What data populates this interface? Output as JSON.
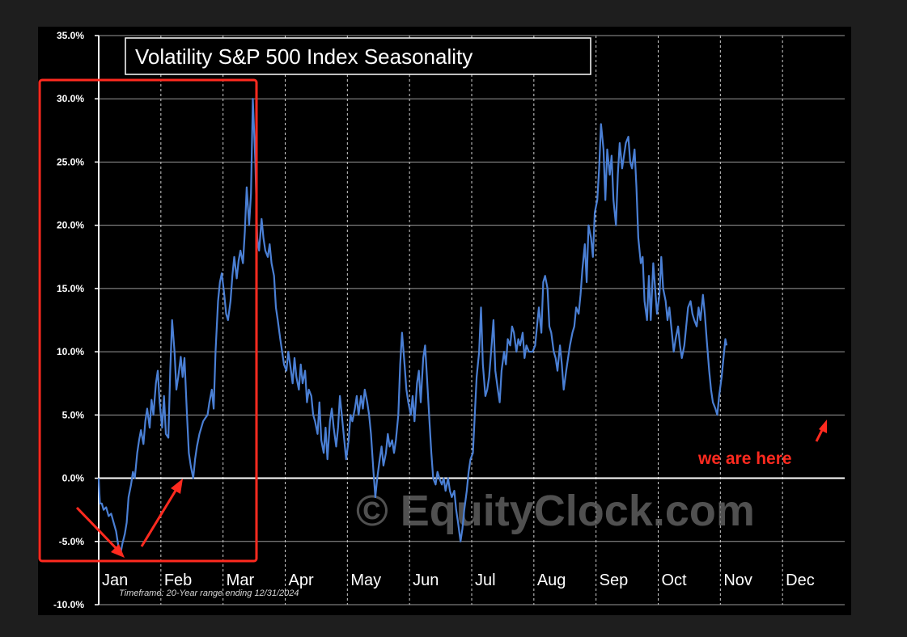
{
  "chart_data": {
    "type": "line",
    "title": "Volatility S&P 500 Index Seasonality",
    "footnote": "Timeframe: 20-Year range ending 12/31/2024",
    "watermark": "© EquityClock.com",
    "annotation": "we are here",
    "ylim": [
      -10,
      35
    ],
    "ytick_labels": [
      "-10.0%",
      "-5.0%",
      "0.0%",
      "5.0%",
      "10.0%",
      "15.0%",
      "20.0%",
      "25.0%",
      "30.0%",
      "35.0%"
    ],
    "ytick_values": [
      -10,
      -5,
      0,
      5,
      10,
      15,
      20,
      25,
      30,
      35
    ],
    "month_labels": [
      "Jan",
      "Feb",
      "Mar",
      "Apr",
      "May",
      "Jun",
      "Jul",
      "Aug",
      "Sep",
      "Oct",
      "Nov",
      "Dec"
    ],
    "xlim": [
      0,
      12
    ],
    "grid": true,
    "line_color": "#4a7fd4",
    "highlight_color": "#ff2a1f",
    "series": [
      {
        "points": [
          [
            0.0,
            0.0
          ],
          [
            0.02,
            -2.0
          ],
          [
            0.05,
            -2.0
          ],
          [
            0.08,
            -2.5
          ],
          [
            0.12,
            -2.3
          ],
          [
            0.16,
            -3.0
          ],
          [
            0.2,
            -2.8
          ],
          [
            0.24,
            -3.5
          ],
          [
            0.28,
            -4.2
          ],
          [
            0.32,
            -5.5
          ],
          [
            0.35,
            -6.0
          ],
          [
            0.38,
            -5.2
          ],
          [
            0.42,
            -4.4
          ],
          [
            0.45,
            -3.5
          ],
          [
            0.48,
            -1.5
          ],
          [
            0.52,
            -0.5
          ],
          [
            0.55,
            0.5
          ],
          [
            0.58,
            0.0
          ],
          [
            0.62,
            2.0
          ],
          [
            0.65,
            3.0
          ],
          [
            0.68,
            3.8
          ],
          [
            0.72,
            2.7
          ],
          [
            0.75,
            4.5
          ],
          [
            0.78,
            5.5
          ],
          [
            0.82,
            4.0
          ],
          [
            0.85,
            6.2
          ],
          [
            0.88,
            5.0
          ],
          [
            0.92,
            7.5
          ],
          [
            0.95,
            8.5
          ],
          [
            0.98,
            6.0
          ],
          [
            1.02,
            4.0
          ],
          [
            1.05,
            6.5
          ],
          [
            1.08,
            3.5
          ],
          [
            1.12,
            3.2
          ],
          [
            1.15,
            8.5
          ],
          [
            1.18,
            12.5
          ],
          [
            1.22,
            10.0
          ],
          [
            1.25,
            7.0
          ],
          [
            1.28,
            8.0
          ],
          [
            1.32,
            9.6
          ],
          [
            1.35,
            8.0
          ],
          [
            1.38,
            9.5
          ],
          [
            1.42,
            5.0
          ],
          [
            1.45,
            2.0
          ],
          [
            1.48,
            1.0
          ],
          [
            1.52,
            0.0
          ],
          [
            1.55,
            1.5
          ],
          [
            1.58,
            2.5
          ],
          [
            1.62,
            3.5
          ],
          [
            1.65,
            4.0
          ],
          [
            1.68,
            4.5
          ],
          [
            1.72,
            4.8
          ],
          [
            1.75,
            5.0
          ],
          [
            1.78,
            6.0
          ],
          [
            1.82,
            7.0
          ],
          [
            1.85,
            5.5
          ],
          [
            1.88,
            10.0
          ],
          [
            1.92,
            14.0
          ],
          [
            1.95,
            15.5
          ],
          [
            1.98,
            16.2
          ],
          [
            2.02,
            14.5
          ],
          [
            2.05,
            13.0
          ],
          [
            2.08,
            12.5
          ],
          [
            2.12,
            14.0
          ],
          [
            2.15,
            16.0
          ],
          [
            2.18,
            17.5
          ],
          [
            2.22,
            15.8
          ],
          [
            2.25,
            17.2
          ],
          [
            2.28,
            18.0
          ],
          [
            2.32,
            17.0
          ],
          [
            2.35,
            19.5
          ],
          [
            2.38,
            23.0
          ],
          [
            2.42,
            20.0
          ],
          [
            2.45,
            22.5
          ],
          [
            2.48,
            30.0
          ],
          [
            2.52,
            25.0
          ],
          [
            2.55,
            19.0
          ],
          [
            2.58,
            18.0
          ],
          [
            2.62,
            20.5
          ],
          [
            2.65,
            19.0
          ],
          [
            2.68,
            18.0
          ],
          [
            2.72,
            17.5
          ],
          [
            2.75,
            18.5
          ],
          [
            2.78,
            17.0
          ],
          [
            2.82,
            16.0
          ],
          [
            2.85,
            13.5
          ],
          [
            2.88,
            12.5
          ],
          [
            2.92,
            11.0
          ],
          [
            2.95,
            10.0
          ],
          [
            2.98,
            9.0
          ],
          [
            3.02,
            8.5
          ],
          [
            3.05,
            10.0
          ],
          [
            3.08,
            9.0
          ],
          [
            3.12,
            7.5
          ],
          [
            3.15,
            9.5
          ],
          [
            3.18,
            8.0
          ],
          [
            3.22,
            7.0
          ],
          [
            3.25,
            9.0
          ],
          [
            3.28,
            7.5
          ],
          [
            3.32,
            8.5
          ],
          [
            3.35,
            6.0
          ],
          [
            3.38,
            7.0
          ],
          [
            3.42,
            6.5
          ],
          [
            3.45,
            5.0
          ],
          [
            3.48,
            4.5
          ],
          [
            3.52,
            3.5
          ],
          [
            3.55,
            6.0
          ],
          [
            3.58,
            3.0
          ],
          [
            3.62,
            2.0
          ],
          [
            3.65,
            4.0
          ],
          [
            3.68,
            1.5
          ],
          [
            3.72,
            4.5
          ],
          [
            3.75,
            5.5
          ],
          [
            3.78,
            4.0
          ],
          [
            3.82,
            2.5
          ],
          [
            3.85,
            4.0
          ],
          [
            3.88,
            6.5
          ],
          [
            3.92,
            4.5
          ],
          [
            3.95,
            3.0
          ],
          [
            3.98,
            1.5
          ],
          [
            4.02,
            3.0
          ],
          [
            4.05,
            5.0
          ],
          [
            4.08,
            4.5
          ],
          [
            4.12,
            5.5
          ],
          [
            4.15,
            6.5
          ],
          [
            4.18,
            5.0
          ],
          [
            4.22,
            6.5
          ],
          [
            4.25,
            5.5
          ],
          [
            4.28,
            7.0
          ],
          [
            4.32,
            6.0
          ],
          [
            4.35,
            5.0
          ],
          [
            4.38,
            3.5
          ],
          [
            4.42,
            0.5
          ],
          [
            4.45,
            -1.5
          ],
          [
            4.48,
            0.0
          ],
          [
            4.52,
            1.5
          ],
          [
            4.55,
            2.5
          ],
          [
            4.58,
            1.0
          ],
          [
            4.62,
            2.0
          ],
          [
            4.65,
            3.5
          ],
          [
            4.68,
            2.5
          ],
          [
            4.72,
            3.0
          ],
          [
            4.75,
            2.0
          ],
          [
            4.78,
            3.0
          ],
          [
            4.82,
            5.0
          ],
          [
            4.85,
            9.0
          ],
          [
            4.88,
            11.5
          ],
          [
            4.92,
            9.0
          ],
          [
            4.95,
            7.0
          ],
          [
            4.98,
            6.0
          ],
          [
            5.02,
            5.0
          ],
          [
            5.05,
            6.5
          ],
          [
            5.08,
            4.5
          ],
          [
            5.12,
            7.5
          ],
          [
            5.15,
            8.5
          ],
          [
            5.18,
            6.0
          ],
          [
            5.22,
            9.5
          ],
          [
            5.25,
            10.5
          ],
          [
            5.28,
            8.0
          ],
          [
            5.32,
            4.5
          ],
          [
            5.35,
            2.0
          ],
          [
            5.38,
            0.0
          ],
          [
            5.42,
            -0.5
          ],
          [
            5.45,
            0.5
          ],
          [
            5.48,
            0.0
          ],
          [
            5.52,
            -0.5
          ],
          [
            5.55,
            0.0
          ],
          [
            5.58,
            -1.0
          ],
          [
            5.62,
            0.0
          ],
          [
            5.65,
            -1.0
          ],
          [
            5.68,
            -1.5
          ],
          [
            5.72,
            -1.0
          ],
          [
            5.75,
            -2.5
          ],
          [
            5.78,
            -3.5
          ],
          [
            5.82,
            -5.0
          ],
          [
            5.85,
            -4.0
          ],
          [
            5.88,
            -2.5
          ],
          [
            5.92,
            -1.0
          ],
          [
            5.95,
            0.5
          ],
          [
            5.98,
            1.5
          ],
          [
            6.02,
            2.0
          ],
          [
            6.05,
            5.0
          ],
          [
            6.08,
            8.0
          ],
          [
            6.12,
            10.0
          ],
          [
            6.15,
            13.5
          ],
          [
            6.18,
            9.0
          ],
          [
            6.22,
            6.5
          ],
          [
            6.25,
            7.0
          ],
          [
            6.28,
            8.0
          ],
          [
            6.32,
            10.5
          ],
          [
            6.35,
            12.5
          ],
          [
            6.38,
            8.5
          ],
          [
            6.42,
            7.0
          ],
          [
            6.45,
            6.0
          ],
          [
            6.48,
            8.5
          ],
          [
            6.52,
            10.0
          ],
          [
            6.55,
            9.0
          ],
          [
            6.58,
            11.0
          ],
          [
            6.62,
            10.5
          ],
          [
            6.65,
            12.0
          ],
          [
            6.68,
            11.5
          ],
          [
            6.72,
            10.0
          ],
          [
            6.75,
            11.0
          ],
          [
            6.78,
            10.5
          ],
          [
            6.82,
            11.5
          ],
          [
            6.85,
            9.5
          ],
          [
            6.88,
            10.5
          ],
          [
            6.92,
            10.0
          ],
          [
            6.95,
            10.0
          ],
          [
            6.98,
            10.0
          ],
          [
            7.02,
            10.5
          ],
          [
            7.05,
            12.0
          ],
          [
            7.08,
            13.5
          ],
          [
            7.12,
            11.5
          ],
          [
            7.15,
            15.5
          ],
          [
            7.18,
            16.0
          ],
          [
            7.22,
            15.0
          ],
          [
            7.25,
            12.0
          ],
          [
            7.28,
            11.5
          ],
          [
            7.32,
            10.0
          ],
          [
            7.35,
            9.5
          ],
          [
            7.38,
            8.5
          ],
          [
            7.42,
            10.5
          ],
          [
            7.45,
            9.0
          ],
          [
            7.48,
            7.0
          ],
          [
            7.52,
            8.5
          ],
          [
            7.55,
            9.5
          ],
          [
            7.58,
            10.5
          ],
          [
            7.62,
            11.5
          ],
          [
            7.65,
            12.0
          ],
          [
            7.68,
            13.5
          ],
          [
            7.72,
            13.0
          ],
          [
            7.75,
            14.5
          ],
          [
            7.78,
            16.5
          ],
          [
            7.82,
            18.5
          ],
          [
            7.85,
            15.5
          ],
          [
            7.88,
            20.0
          ],
          [
            7.92,
            19.0
          ],
          [
            7.95,
            17.5
          ],
          [
            7.98,
            21.0
          ],
          [
            8.02,
            22.0
          ],
          [
            8.05,
            24.5
          ],
          [
            8.08,
            28.0
          ],
          [
            8.12,
            26.0
          ],
          [
            8.15,
            22.0
          ],
          [
            8.18,
            26.0
          ],
          [
            8.22,
            24.0
          ],
          [
            8.25,
            25.5
          ],
          [
            8.28,
            22.0
          ],
          [
            8.32,
            20.0
          ],
          [
            8.35,
            24.0
          ],
          [
            8.38,
            26.5
          ],
          [
            8.42,
            24.5
          ],
          [
            8.45,
            25.5
          ],
          [
            8.48,
            26.5
          ],
          [
            8.52,
            27.0
          ],
          [
            8.55,
            25.0
          ],
          [
            8.58,
            24.5
          ],
          [
            8.62,
            26.0
          ],
          [
            8.65,
            23.0
          ],
          [
            8.68,
            19.0
          ],
          [
            8.72,
            17.0
          ],
          [
            8.75,
            17.5
          ],
          [
            8.78,
            14.0
          ],
          [
            8.82,
            12.5
          ],
          [
            8.85,
            16.0
          ],
          [
            8.88,
            12.5
          ],
          [
            8.92,
            17.0
          ],
          [
            8.95,
            15.0
          ],
          [
            8.98,
            13.0
          ],
          [
            9.02,
            14.5
          ],
          [
            9.05,
            17.5
          ],
          [
            9.08,
            15.0
          ],
          [
            9.12,
            14.0
          ],
          [
            9.15,
            12.5
          ],
          [
            9.18,
            13.5
          ],
          [
            9.22,
            11.5
          ],
          [
            9.25,
            10.0
          ],
          [
            9.28,
            11.0
          ],
          [
            9.32,
            12.0
          ],
          [
            9.35,
            10.5
          ],
          [
            9.38,
            9.5
          ],
          [
            9.42,
            10.5
          ],
          [
            9.45,
            12.0
          ],
          [
            9.48,
            13.5
          ],
          [
            9.52,
            14.0
          ],
          [
            9.55,
            13.0
          ],
          [
            9.58,
            12.5
          ],
          [
            9.62,
            12.0
          ],
          [
            9.65,
            13.5
          ],
          [
            9.68,
            12.5
          ],
          [
            9.72,
            14.5
          ],
          [
            9.75,
            13.0
          ],
          [
            9.78,
            11.0
          ],
          [
            9.82,
            8.5
          ],
          [
            9.85,
            7.0
          ],
          [
            9.88,
            6.0
          ],
          [
            9.92,
            5.5
          ],
          [
            9.95,
            5.0
          ],
          [
            9.98,
            6.5
          ],
          [
            10.02,
            8.0
          ],
          [
            10.05,
            9.5
          ],
          [
            10.08,
            11.0
          ],
          [
            10.1,
            10.5
          ]
        ]
      }
    ]
  }
}
